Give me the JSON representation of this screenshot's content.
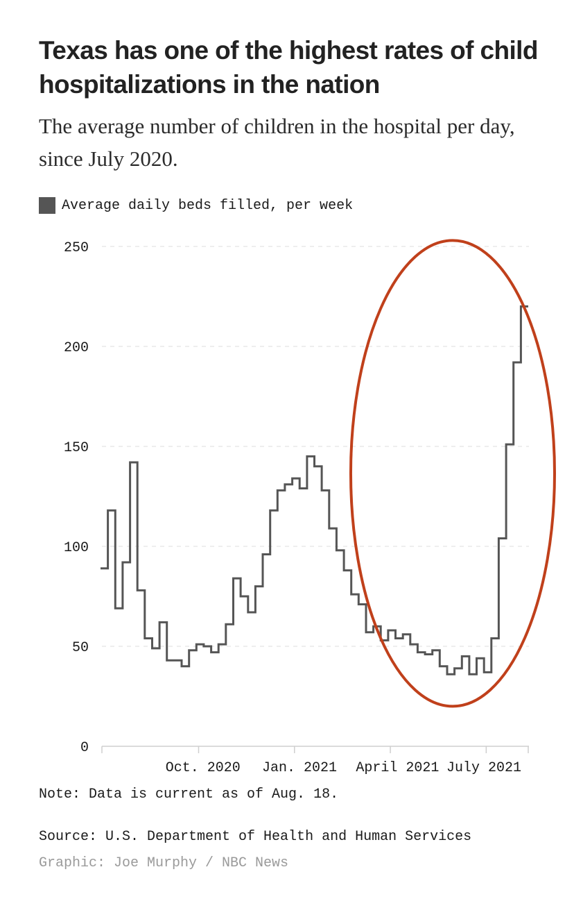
{
  "chart_data": {
    "type": "line",
    "title": "Texas has one of the highest rates of child hospitalizations in the nation",
    "subtitle": "The average number of children in the hospital per day, since July 2020.",
    "xlabel": "",
    "ylabel": "",
    "ylim": [
      0,
      250
    ],
    "yticks": [
      0,
      50,
      100,
      150,
      200,
      250
    ],
    "ytick_labels": [
      "0",
      "50",
      "100",
      "150",
      "200",
      "250"
    ],
    "xtick_labels": [
      "Oct. 2020",
      "Jan. 2021",
      "April 2021",
      "July 2021"
    ],
    "grid": true,
    "legend_position": "top-left",
    "series": [
      {
        "name": "Average daily beds filled, per week",
        "color": "#555555",
        "step": true,
        "values": [
          89,
          118,
          69,
          92,
          142,
          78,
          54,
          49,
          62,
          43,
          43,
          40,
          48,
          51,
          50,
          47,
          51,
          61,
          84,
          75,
          67,
          80,
          96,
          118,
          128,
          131,
          134,
          129,
          145,
          140,
          128,
          109,
          98,
          88,
          76,
          71,
          57,
          60,
          53,
          58,
          54,
          56,
          51,
          47,
          46,
          48,
          40,
          36,
          39,
          45,
          36,
          44,
          37,
          54,
          104,
          151,
          192,
          220
        ]
      }
    ],
    "annotations": [
      {
        "type": "ellipse",
        "color": "#c0401b",
        "description_x_range": [
          36,
          58
        ],
        "description_y_range": [
          20,
          253
        ]
      }
    ]
  },
  "footer": {
    "note": "Note: Data is current as of Aug. 18.",
    "source": "Source: U.S. Department of Health and Human Services",
    "credit": "Graphic: Joe Murphy / NBC News"
  }
}
